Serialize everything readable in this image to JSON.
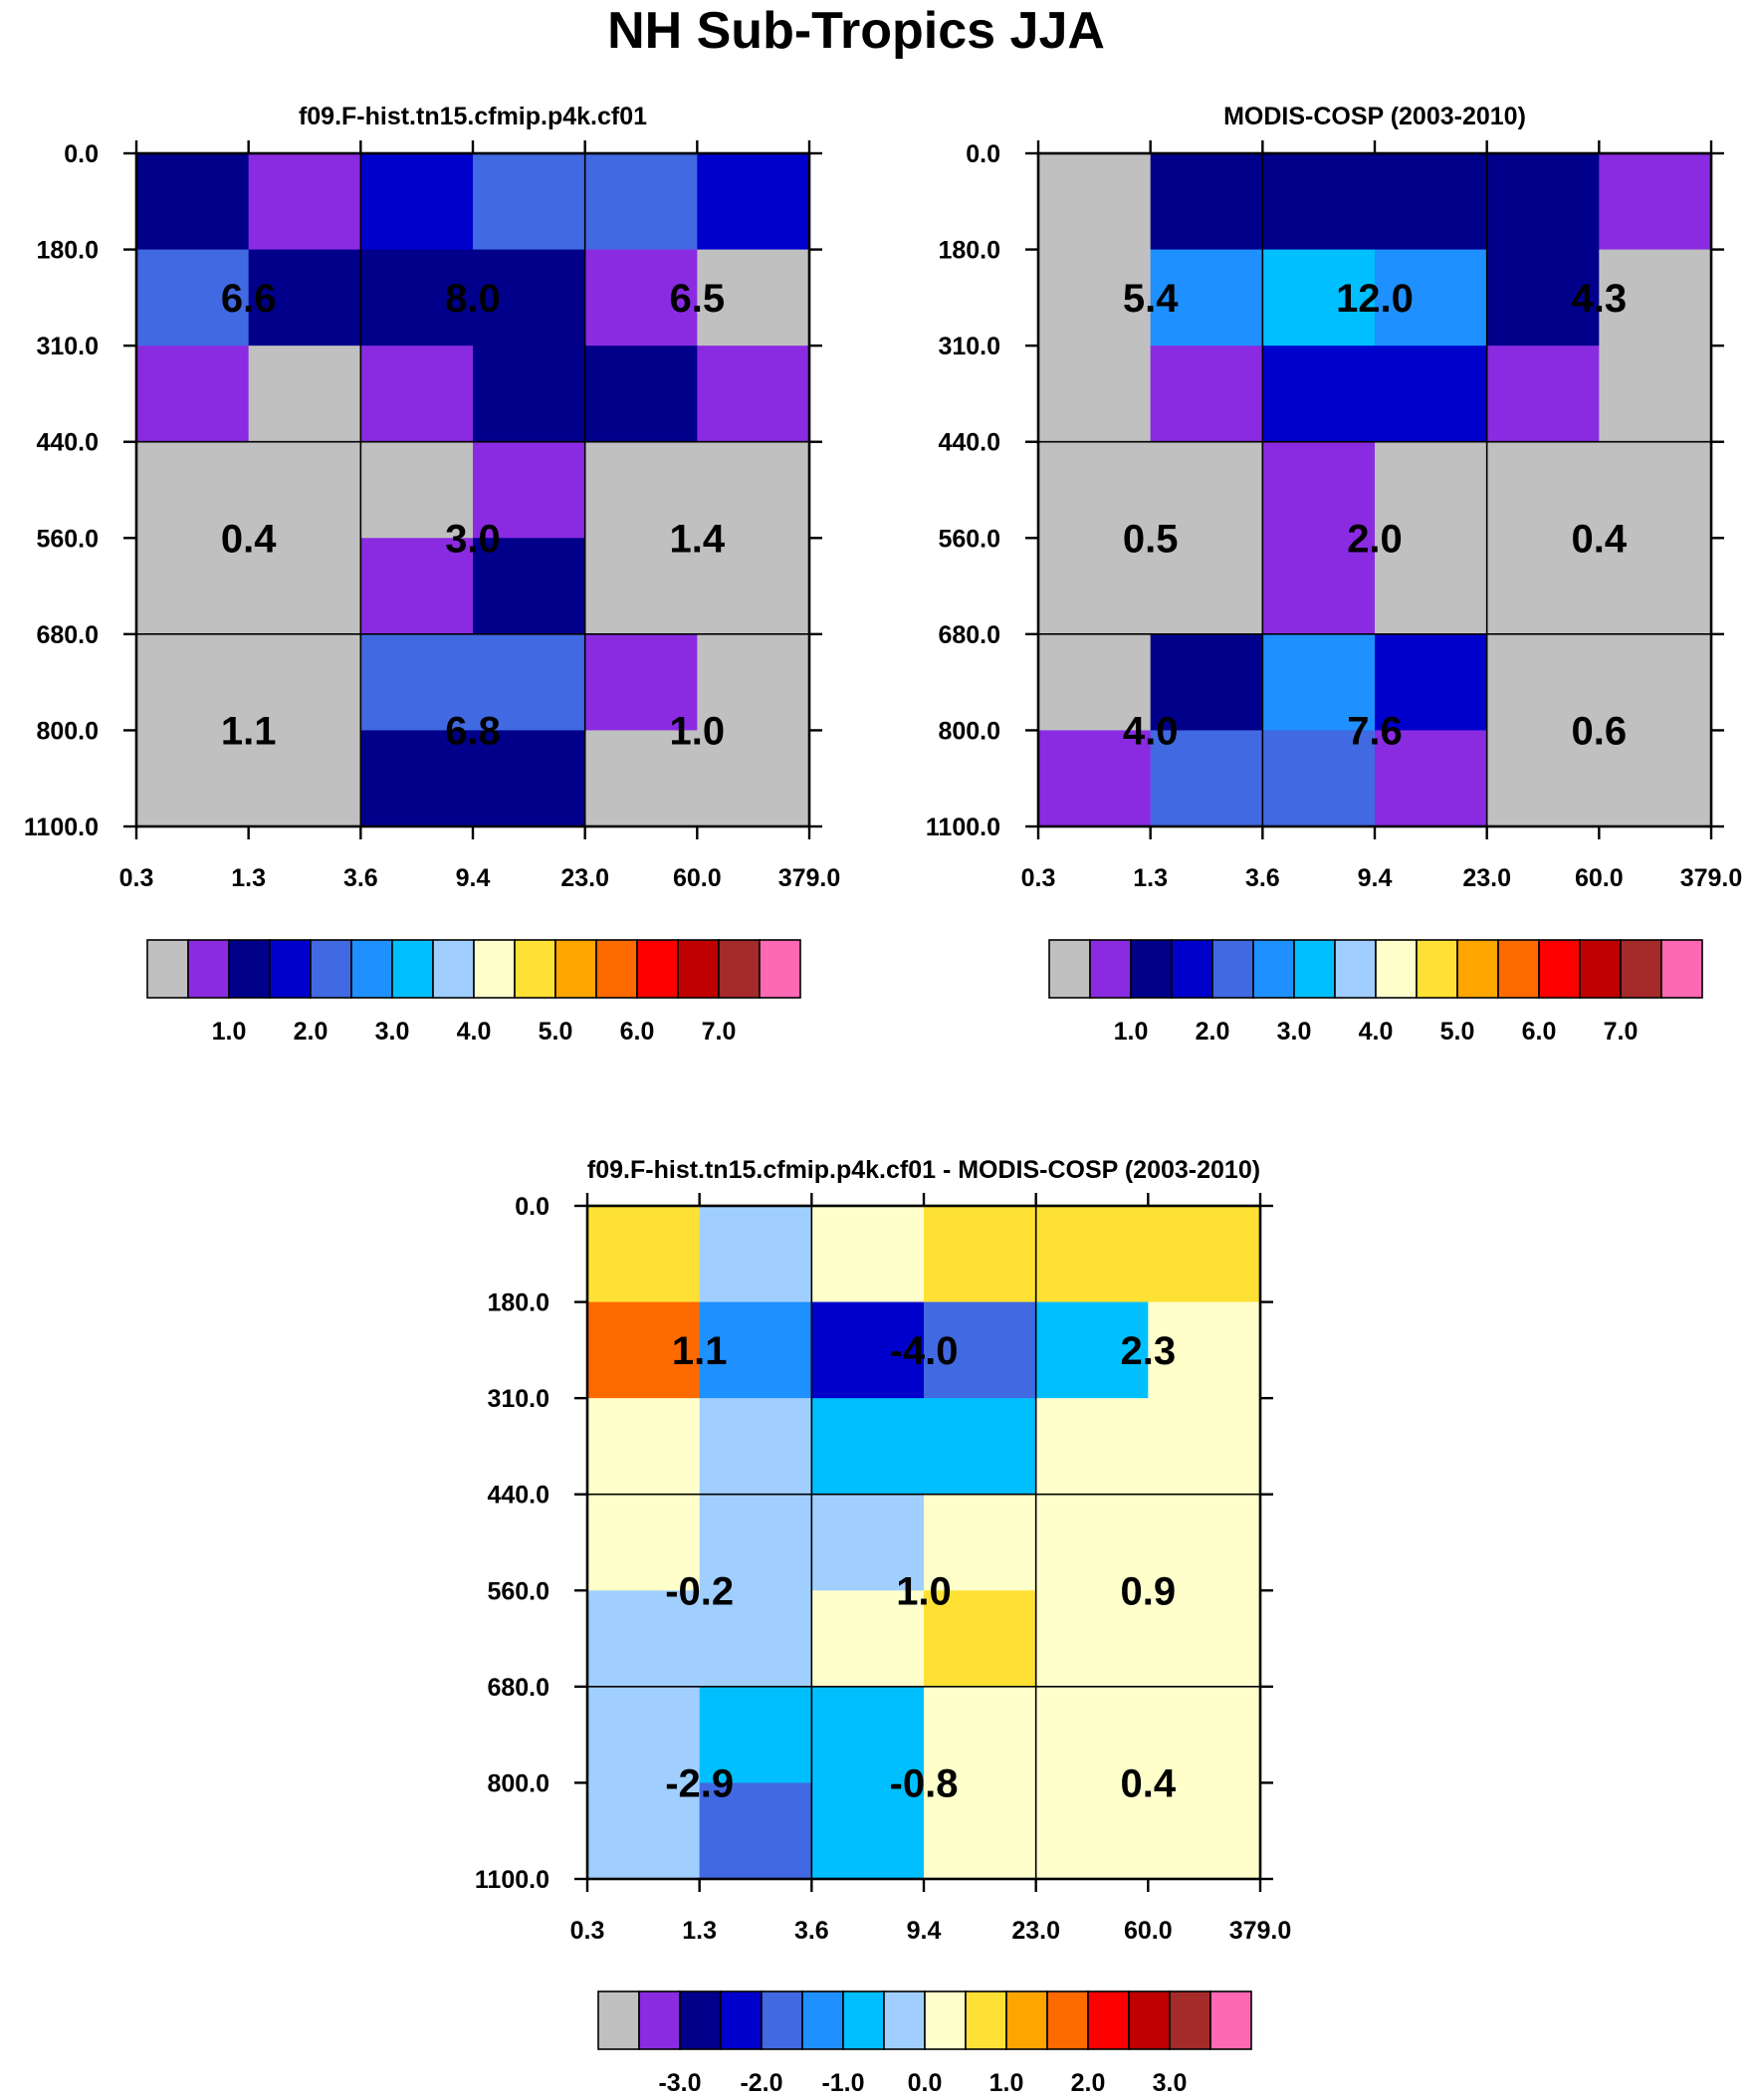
{
  "figure_title": "NH Sub-Tropics JJA",
  "colors": {
    "palette": [
      "#c0c0c0",
      "#8a2be2",
      "#00008b",
      "#0000cd",
      "#4169e1",
      "#1e90ff",
      "#00bfff",
      "#a0cfff",
      "#ffffcc",
      "#ffe135",
      "#ffa500",
      "#ff6a00",
      "#ff0000",
      "#c00000",
      "#a52a2a",
      "#ff69b4"
    ]
  },
  "chart_data": [
    {
      "type": "heatmap",
      "id": "model",
      "title": "f09.F-hist.tn15.cfmip.p4k.cf01",
      "x_ticks": [
        "0.3",
        "1.3",
        "3.6",
        "9.4",
        "23.0",
        "60.0",
        "379.0"
      ],
      "y_ticks": [
        "0.0",
        "180.0",
        "310.0",
        "440.0",
        "560.0",
        "680.0",
        "800.0",
        "1100.0"
      ],
      "xlabel": "",
      "ylabel": "",
      "grid": [
        [
          2,
          1,
          3,
          4,
          4,
          3
        ],
        [
          4,
          2,
          2,
          2,
          1,
          0
        ],
        [
          1,
          0,
          1,
          2,
          2,
          1
        ],
        [
          0,
          0,
          0,
          1,
          0,
          0
        ],
        [
          0,
          0,
          1,
          2,
          0,
          0
        ],
        [
          0,
          0,
          4,
          4,
          1,
          0
        ],
        [
          0,
          0,
          2,
          2,
          0,
          0
        ]
      ],
      "boxes": [
        {
          "label": "6.6",
          "value": 6.6
        },
        {
          "label": "8.0",
          "value": 8.0
        },
        {
          "label": "6.5",
          "value": 6.5
        },
        {
          "label": "0.4",
          "value": 0.4
        },
        {
          "label": "3.0",
          "value": 3.0
        },
        {
          "label": "1.4",
          "value": 1.4
        },
        {
          "label": "1.1",
          "value": 1.1
        },
        {
          "label": "6.8",
          "value": 6.8
        },
        {
          "label": "1.0",
          "value": 1.0
        }
      ],
      "colorbar": {
        "levels": [
          0.5,
          1.0,
          1.5,
          2.0,
          2.5,
          3.0,
          3.5,
          4.0,
          4.5,
          5.0,
          5.5,
          6.0,
          6.5,
          7.0,
          7.5
        ],
        "tick_labels": [
          "1.0",
          "2.0",
          "3.0",
          "4.0",
          "5.0",
          "6.0",
          "7.0"
        ]
      }
    },
    {
      "type": "heatmap",
      "id": "obs",
      "title": "MODIS-COSP (2003-2010)",
      "x_ticks": [
        "0.3",
        "1.3",
        "3.6",
        "9.4",
        "23.0",
        "60.0",
        "379.0"
      ],
      "y_ticks": [
        "0.0",
        "180.0",
        "310.0",
        "440.0",
        "560.0",
        "680.0",
        "800.0",
        "1100.0"
      ],
      "xlabel": "",
      "ylabel": "",
      "grid": [
        [
          0,
          2,
          2,
          2,
          2,
          1
        ],
        [
          0,
          5,
          6,
          5,
          2,
          0
        ],
        [
          0,
          1,
          3,
          3,
          1,
          0
        ],
        [
          0,
          0,
          1,
          0,
          0,
          0
        ],
        [
          0,
          0,
          1,
          0,
          0,
          0
        ],
        [
          0,
          2,
          5,
          3,
          0,
          0
        ],
        [
          1,
          4,
          4,
          1,
          0,
          0
        ]
      ],
      "boxes": [
        {
          "label": "5.4",
          "value": 5.4
        },
        {
          "label": "12.0",
          "value": 12.0
        },
        {
          "label": "4.3",
          "value": 4.3
        },
        {
          "label": "0.5",
          "value": 0.5
        },
        {
          "label": "2.0",
          "value": 2.0
        },
        {
          "label": "0.4",
          "value": 0.4
        },
        {
          "label": "4.0",
          "value": 4.0
        },
        {
          "label": "7.6",
          "value": 7.6
        },
        {
          "label": "0.6",
          "value": 0.6
        }
      ],
      "colorbar": {
        "levels": [
          0.5,
          1.0,
          1.5,
          2.0,
          2.5,
          3.0,
          3.5,
          4.0,
          4.5,
          5.0,
          5.5,
          6.0,
          6.5,
          7.0,
          7.5
        ],
        "tick_labels": [
          "1.0",
          "2.0",
          "3.0",
          "4.0",
          "5.0",
          "6.0",
          "7.0"
        ]
      }
    },
    {
      "type": "heatmap",
      "id": "diff",
      "title": "f09.F-hist.tn15.cfmip.p4k.cf01 - MODIS-COSP (2003-2010)",
      "x_ticks": [
        "0.3",
        "1.3",
        "3.6",
        "9.4",
        "23.0",
        "60.0",
        "379.0"
      ],
      "y_ticks": [
        "0.0",
        "180.0",
        "310.0",
        "440.0",
        "560.0",
        "680.0",
        "800.0",
        "1100.0"
      ],
      "xlabel": "",
      "ylabel": "",
      "grid": [
        [
          9,
          7,
          8,
          9,
          9,
          9
        ],
        [
          11,
          5,
          3,
          4,
          6,
          8
        ],
        [
          8,
          7,
          6,
          6,
          8,
          8
        ],
        [
          8,
          7,
          7,
          8,
          8,
          8
        ],
        [
          7,
          7,
          8,
          9,
          8,
          8
        ],
        [
          7,
          6,
          6,
          8,
          8,
          8
        ],
        [
          7,
          4,
          6,
          8,
          8,
          8
        ]
      ],
      "boxes": [
        {
          "label": "1.1",
          "value": 1.1
        },
        {
          "label": "-4.0",
          "value": -4.0
        },
        {
          "label": "2.3",
          "value": 2.3
        },
        {
          "label": "-0.2",
          "value": -0.2
        },
        {
          "label": "1.0",
          "value": 1.0
        },
        {
          "label": "0.9",
          "value": 0.9
        },
        {
          "label": "-2.9",
          "value": -2.9
        },
        {
          "label": "-0.8",
          "value": -0.8
        },
        {
          "label": "0.4",
          "value": 0.4
        }
      ],
      "colorbar": {
        "levels": [
          -3.5,
          -3.0,
          -2.5,
          -2.0,
          -1.5,
          -1.0,
          -0.5,
          0.0,
          0.5,
          1.0,
          1.5,
          2.0,
          2.5,
          3.0,
          3.5
        ],
        "tick_labels": [
          "-3.0",
          "-2.0",
          "-1.0",
          "0.0",
          "1.0",
          "2.0",
          "3.0"
        ]
      }
    }
  ]
}
